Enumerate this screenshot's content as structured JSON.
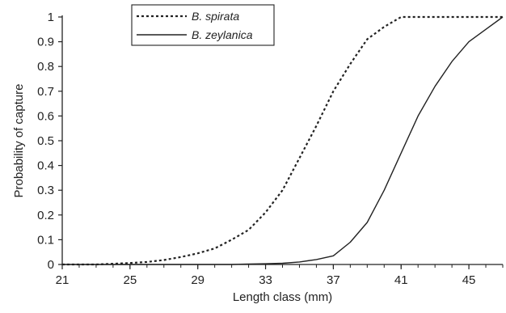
{
  "chart_data": {
    "type": "line",
    "xlabel": "Length class (mm)",
    "ylabel": "Probability of capture",
    "xlim": [
      21,
      47
    ],
    "ylim": [
      0,
      1
    ],
    "x_ticks": [
      21,
      25,
      29,
      33,
      37,
      41,
      45
    ],
    "y_ticks": [
      0,
      0.1,
      0.2,
      0.3,
      0.4,
      0.5,
      0.6,
      0.7,
      0.8,
      0.9,
      1
    ],
    "y_tick_labels": [
      "0",
      "0.1",
      "0.2",
      "0.3",
      "0.4",
      "0.5",
      "0.6",
      "0.7",
      "0.8",
      "0.9",
      "1"
    ],
    "grid": false,
    "legend_position": "top-left",
    "series": [
      {
        "name": "B. spirata",
        "style": "dotted",
        "color": "#222222",
        "x": [
          21,
          22,
          23,
          24,
          25,
          26,
          27,
          28,
          29,
          30,
          31,
          32,
          33,
          34,
          35,
          36,
          37,
          38,
          39,
          40,
          41,
          42,
          43,
          44,
          45,
          46,
          47
        ],
        "y": [
          0.0,
          0.0,
          0.0,
          0.003,
          0.006,
          0.01,
          0.018,
          0.03,
          0.045,
          0.065,
          0.1,
          0.14,
          0.21,
          0.3,
          0.43,
          0.56,
          0.7,
          0.81,
          0.91,
          0.96,
          1.0,
          1.0,
          1.0,
          1.0,
          1.0,
          1.0,
          1.0
        ]
      },
      {
        "name": "B. zeylanica",
        "style": "solid",
        "color": "#222222",
        "x": [
          21,
          22,
          23,
          24,
          25,
          26,
          27,
          28,
          29,
          30,
          31,
          32,
          33,
          34,
          35,
          36,
          37,
          38,
          39,
          40,
          41,
          42,
          43,
          44,
          45,
          46,
          47
        ],
        "y": [
          0.0,
          0.0,
          0.0,
          0.0,
          0.0,
          0.0,
          0.0,
          0.0,
          0.0,
          0.0,
          0.0,
          0.002,
          0.003,
          0.005,
          0.01,
          0.02,
          0.035,
          0.09,
          0.17,
          0.3,
          0.45,
          0.6,
          0.72,
          0.82,
          0.9,
          0.95,
          1.0
        ]
      }
    ]
  }
}
